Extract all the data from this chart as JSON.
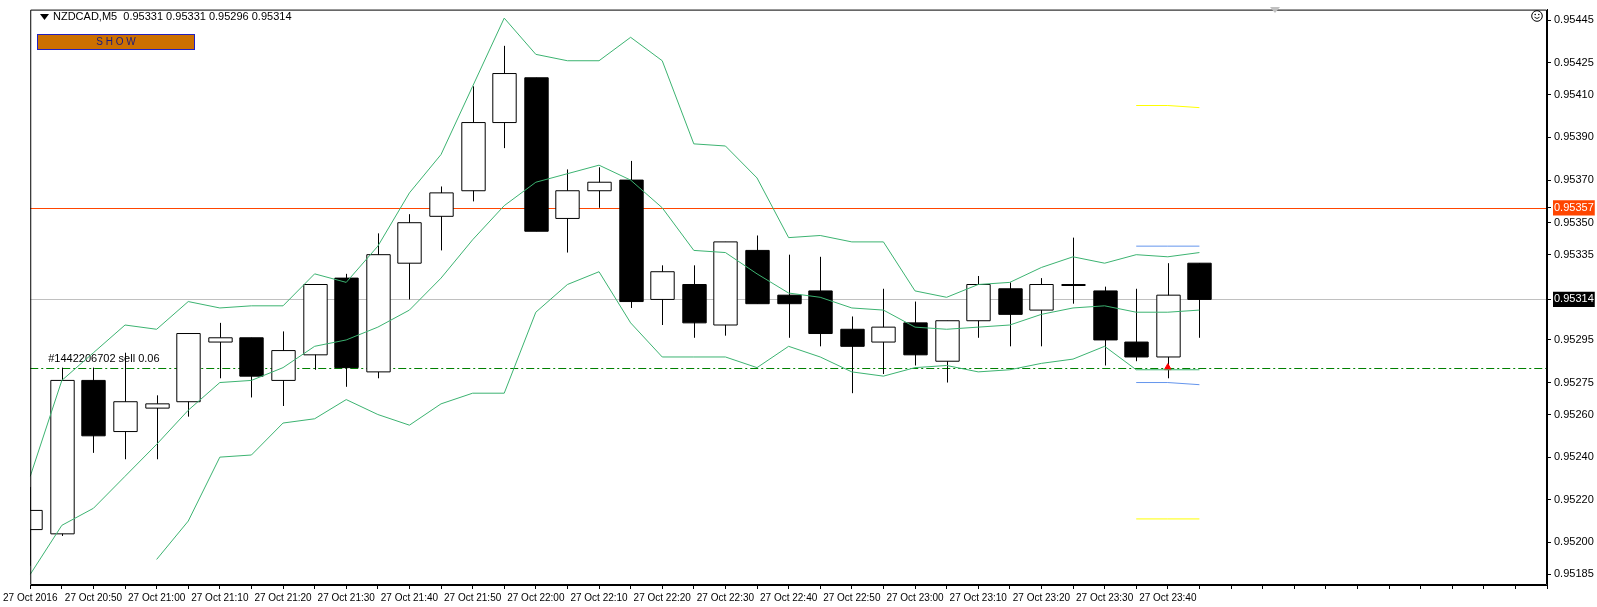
{
  "chart_data": {
    "type": "candlestick",
    "title": "NZDCAD,M5  0.95331 0.95331 0.95296 0.95314",
    "annotations": [
      "S H O W"
    ],
    "categories": [
      "27 Oct 2016",
      null,
      "27 Oct 20:50",
      null,
      "27 Oct 21:00",
      null,
      "27 Oct 21:10",
      null,
      "27 Oct 21:20",
      null,
      "27 Oct 21:30",
      null,
      "27 Oct 21:40",
      null,
      "27 Oct 21:50",
      null,
      "27 Oct 22:00",
      null,
      "27 Oct 22:10",
      null,
      "27 Oct 22:20",
      null,
      "27 Oct 22:30",
      null,
      "27 Oct 22:40",
      null,
      "27 Oct 22:50",
      null,
      "27 Oct 23:00",
      null,
      "27 Oct 23:10",
      null,
      "27 Oct 23:20",
      null,
      "27 Oct 23:30",
      null,
      "27 Oct 23:40",
      null,
      null,
      null,
      null,
      null,
      null,
      null,
      null,
      null,
      null,
      null,
      null
    ],
    "color": "#000000",
    "colors": [
      "#ffffff",
      "#ffffff",
      "#000000",
      "#ffffff",
      "#ffffff",
      "#ffffff",
      "#ffffff",
      "#000000",
      "#ffffff",
      "#ffffff",
      "#000000",
      "#ffffff",
      "#ffffff",
      "#ffffff",
      "#ffffff",
      "#ffffff",
      "#000000",
      "#ffffff",
      "#ffffff",
      "#000000",
      "#ffffff",
      "#000000",
      "#ffffff",
      "#000000",
      "#000000",
      "#000000",
      "#000000",
      "#ffffff",
      "#000000",
      "#ffffff",
      "#ffffff",
      "#000000",
      "#ffffff",
      "#ffffff",
      "#000000",
      "#000000",
      "#ffffff",
      "#000000",
      null,
      null,
      null,
      null,
      null,
      null,
      null,
      null,
      null,
      null,
      null
    ],
    "ohlc": [
      [
        0.95206,
        0.95226,
        0.95189,
        0.95215
      ],
      [
        0.95204,
        0.95282,
        0.95203,
        0.95276
      ],
      [
        0.95276,
        0.95282,
        0.95242,
        0.9525
      ],
      [
        0.95252,
        0.95289,
        0.95239,
        0.95266
      ],
      [
        0.95263,
        0.95269,
        0.95239,
        0.95265
      ],
      [
        0.95266,
        0.95298,
        0.95259,
        0.95298
      ],
      [
        0.95294,
        0.95303,
        0.95277,
        0.95296
      ],
      [
        0.95296,
        0.95296,
        0.95268,
        0.95278
      ],
      [
        0.95276,
        0.95299,
        0.95264,
        0.9529
      ],
      [
        0.95288,
        0.95321,
        0.95281,
        0.95321
      ],
      [
        0.95324,
        0.95326,
        0.95273,
        0.95282
      ],
      [
        0.9528,
        0.95345,
        0.95277,
        0.95335
      ],
      [
        0.95331,
        0.95354,
        0.95314,
        0.9535
      ],
      [
        0.95353,
        0.95367,
        0.95337,
        0.95364
      ],
      [
        0.95365,
        0.95414,
        0.9536,
        0.95397
      ],
      [
        0.95397,
        0.95433,
        0.95385,
        0.9542
      ],
      [
        0.95418,
        0.95418,
        0.95346,
        0.95346
      ],
      [
        0.95352,
        0.95375,
        0.95336,
        0.95365
      ],
      [
        0.95365,
        0.95376,
        0.95357,
        0.95369
      ],
      [
        0.9537,
        0.95379,
        0.9531,
        0.95313
      ],
      [
        0.95314,
        0.9533,
        0.95302,
        0.95327
      ],
      [
        0.95321,
        0.9533,
        0.95296,
        0.95303
      ],
      [
        0.95302,
        0.95341,
        0.95297,
        0.95341
      ],
      [
        0.95337,
        0.95344,
        0.95312,
        0.95312
      ],
      [
        0.95316,
        0.95335,
        0.95296,
        0.95312
      ],
      [
        0.95318,
        0.95334,
        0.95292,
        0.95298
      ],
      [
        0.953,
        0.95306,
        0.9527,
        0.95292
      ],
      [
        0.95294,
        0.95319,
        0.95279,
        0.95301
      ],
      [
        0.95303,
        0.95313,
        0.95283,
        0.95288
      ],
      [
        0.95285,
        0.95304,
        0.95275,
        0.95304
      ],
      [
        0.95304,
        0.95325,
        0.95296,
        0.95321
      ],
      [
        0.95319,
        0.95322,
        0.95292,
        0.95307
      ],
      [
        0.95309,
        0.95324,
        0.95292,
        0.95321
      ],
      [
        0.95321,
        0.95343,
        0.95312,
        0.95321
      ],
      [
        0.95318,
        0.9532,
        0.95283,
        0.95295
      ],
      [
        0.95294,
        0.95319,
        0.95285,
        0.95287
      ],
      [
        0.95287,
        0.95331,
        0.95277,
        0.95316
      ],
      [
        0.95331,
        0.95331,
        0.95296,
        0.95314
      ],
      null,
      null,
      null,
      null,
      null,
      null,
      null,
      null,
      null,
      null,
      null
    ],
    "series": [
      {
        "type": "line",
        "color": "#3cb371",
        "values": [
          0.95231,
          0.95276,
          0.95289,
          0.95302,
          0.953,
          0.95313,
          0.9531,
          0.95311,
          0.95311,
          0.95326,
          0.95322,
          0.95339,
          0.95364,
          0.95382,
          0.95414,
          0.95446,
          0.95429,
          0.95426,
          0.95426,
          0.95437,
          0.95426,
          0.95387,
          0.95386,
          0.95371,
          0.95343,
          0.95344,
          0.95341,
          0.95341,
          0.95318,
          0.95315,
          0.95321,
          0.95322,
          0.95329,
          0.95334,
          0.95331,
          0.95335,
          0.95334,
          0.95336,
          null,
          null,
          null,
          null,
          null,
          null,
          null,
          null,
          null,
          null,
          null
        ]
      },
      {
        "type": "line",
        "color": "#3cb371",
        "values": [
          0.95185,
          0.95208,
          0.95216,
          0.95231,
          0.95246,
          0.95262,
          0.95275,
          0.95276,
          0.95282,
          0.95292,
          0.95295,
          0.95301,
          0.95309,
          0.95324,
          0.95342,
          0.95358,
          0.95369,
          0.95373,
          0.95377,
          0.9537,
          0.95357,
          0.95337,
          0.95336,
          0.95326,
          0.95317,
          0.95315,
          0.9531,
          0.95309,
          0.95301,
          0.953,
          0.95301,
          0.95302,
          0.95307,
          0.9531,
          0.95311,
          0.95308,
          0.95308,
          0.95309,
          null,
          null,
          null,
          null,
          null,
          null,
          null,
          null,
          null,
          null,
          null
        ]
      },
      {
        "type": "line",
        "color": "#3cb371",
        "values": [
          null,
          null,
          null,
          null,
          0.95192,
          0.9521,
          0.9524,
          0.95241,
          0.95256,
          0.95258,
          0.95267,
          0.9526,
          0.95255,
          0.95265,
          0.9527,
          0.9527,
          0.95308,
          0.95321,
          0.95327,
          0.95303,
          0.95287,
          0.95287,
          0.95287,
          0.95282,
          0.95292,
          0.95287,
          0.9528,
          0.95278,
          0.95282,
          0.95283,
          0.9528,
          0.95281,
          0.95284,
          0.95286,
          0.95292,
          0.95281,
          0.95281,
          0.95281,
          null,
          null,
          null,
          null,
          null,
          null,
          null,
          null,
          null,
          null,
          null
        ]
      },
      {
        "type": "line",
        "color": "#ffff00",
        "values": [
          null,
          null,
          null,
          null,
          null,
          null,
          null,
          null,
          null,
          null,
          null,
          null,
          null,
          null,
          null,
          null,
          null,
          null,
          null,
          null,
          null,
          null,
          null,
          null,
          null,
          null,
          null,
          null,
          null,
          null,
          null,
          null,
          null,
          null,
          null,
          0.95405,
          0.95405,
          0.95404,
          null,
          null,
          null,
          null,
          null,
          null,
          null,
          null,
          null,
          null,
          null
        ]
      },
      {
        "type": "line",
        "color": "#ffff00",
        "values": [
          null,
          null,
          null,
          null,
          null,
          null,
          null,
          null,
          null,
          null,
          null,
          null,
          null,
          null,
          null,
          null,
          null,
          null,
          null,
          null,
          null,
          null,
          null,
          null,
          null,
          null,
          null,
          null,
          null,
          null,
          null,
          null,
          null,
          null,
          null,
          0.95211,
          0.95211,
          0.95211,
          null,
          null,
          null,
          null,
          null,
          null,
          null,
          null,
          null,
          null,
          null
        ]
      },
      {
        "type": "line",
        "color": "#6495ed",
        "values": [
          null,
          null,
          null,
          null,
          null,
          null,
          null,
          null,
          null,
          null,
          null,
          null,
          null,
          null,
          null,
          null,
          null,
          null,
          null,
          null,
          null,
          null,
          null,
          null,
          null,
          null,
          null,
          null,
          null,
          null,
          null,
          null,
          null,
          null,
          null,
          0.95339,
          0.95339,
          0.95339,
          null,
          null,
          null,
          null,
          null,
          null,
          null,
          null,
          null,
          null,
          null
        ]
      },
      {
        "type": "line",
        "color": "#6495ed",
        "values": [
          null,
          null,
          null,
          null,
          null,
          null,
          null,
          null,
          null,
          null,
          null,
          null,
          null,
          null,
          null,
          null,
          null,
          null,
          null,
          null,
          null,
          null,
          null,
          null,
          null,
          null,
          null,
          null,
          null,
          null,
          null,
          null,
          null,
          null,
          null,
          0.95275,
          0.95275,
          0.95274,
          null,
          null,
          null,
          null,
          null,
          null,
          null,
          null,
          null,
          null,
          null
        ]
      },
      {
        "type": "scatter",
        "color": "#ff0000",
        "marker": "triangle",
        "values": [
          null,
          null,
          null,
          null,
          null,
          null,
          null,
          null,
          null,
          null,
          null,
          null,
          null,
          null,
          null,
          null,
          null,
          null,
          null,
          null,
          null,
          null,
          null,
          null,
          null,
          null,
          null,
          null,
          null,
          null,
          null,
          null,
          null,
          null,
          null,
          null,
          0.95282,
          null,
          null,
          null,
          null,
          null,
          null,
          null,
          null,
          null,
          null,
          null,
          null
        ]
      }
    ],
    "ref_lines": [
      {
        "axis": "y",
        "value": 0.95357,
        "color": "#ff4500"
      },
      {
        "axis": "y",
        "value": 0.95314,
        "color": "#c0c0c0"
      },
      {
        "axis": "y",
        "value": 0.95282,
        "label": "#1442206702 sell 0.06",
        "color": "#008000",
        "line_style": "dashed"
      }
    ],
    "ylim": [
      0.9518,
      0.9545
    ],
    "yticks": [
      {
        "value": 0.95445,
        "label": "0.95445"
      },
      {
        "value": 0.95425,
        "label": "0.95425"
      },
      {
        "value": 0.9541,
        "label": "0.95410"
      },
      {
        "value": 0.9539,
        "label": "0.95390"
      },
      {
        "value": 0.9537,
        "label": "0.95370"
      },
      {
        "value": 0.95357,
        "label": "0.95357"
      },
      {
        "value": 0.9535,
        "label": "0.95350"
      },
      {
        "value": 0.95335,
        "label": "0.95335"
      },
      {
        "value": 0.95314,
        "label": "0.95314"
      },
      {
        "value": 0.95295,
        "label": "0.95295"
      },
      {
        "value": 0.95275,
        "label": "0.95275"
      },
      {
        "value": 0.9526,
        "label": "0.95260"
      },
      {
        "value": 0.9524,
        "label": "0.95240"
      },
      {
        "value": 0.9522,
        "label": "0.95220"
      },
      {
        "value": 0.952,
        "label": "0.95200"
      },
      {
        "value": 0.95185,
        "label": "0.95185"
      }
    ],
    "grid": false,
    "legend": false
  }
}
